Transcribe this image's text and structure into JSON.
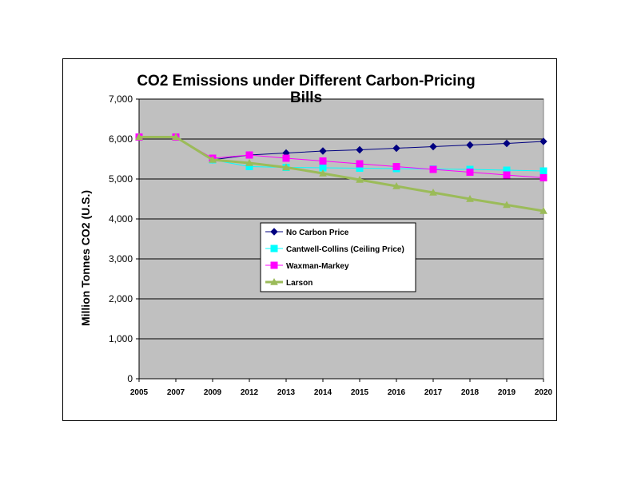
{
  "chart_data": {
    "type": "line",
    "title_lines": [
      "CO2 Emissions under Different Carbon-Pricing",
      "Bills"
    ],
    "ylabel": "Million Tonnes CO2 (U.S.)",
    "xlabel": "",
    "categories": [
      "2005",
      "2007",
      "2009",
      "2012",
      "2013",
      "2014",
      "2015",
      "2016",
      "2017",
      "2018",
      "2019",
      "2020"
    ],
    "y_ticks": [
      "0",
      "1,000",
      "2,000",
      "3,000",
      "4,000",
      "5,000",
      "6,000",
      "7,000"
    ],
    "ylim": [
      0,
      7000
    ],
    "grid": true,
    "plot_background": "#c0c0c0",
    "legend_position": "center",
    "series": [
      {
        "name": "No Carbon Price",
        "color": "#000080",
        "marker": "diamond",
        "values": [
          6050,
          6050,
          5480,
          5600,
          5650,
          5700,
          5730,
          5770,
          5810,
          5850,
          5890,
          5940
        ]
      },
      {
        "name": "Cantwell-Collins (Ceiling Price)",
        "color": "#00ffff",
        "marker": "square",
        "values": [
          6050,
          6050,
          5480,
          5310,
          5290,
          5280,
          5270,
          5260,
          5250,
          5240,
          5220,
          5200
        ]
      },
      {
        "name": "Waxman-Markey",
        "color": "#ff00ff",
        "marker": "square",
        "values": [
          6050,
          6050,
          5520,
          5600,
          5520,
          5450,
          5380,
          5310,
          5240,
          5170,
          5100,
          5030
        ]
      },
      {
        "name": "Larson",
        "color": "#9bbb59",
        "marker": "triangle",
        "values": [
          6050,
          6050,
          5480,
          5400,
          5290,
          5140,
          4980,
          4820,
          4660,
          4500,
          4350,
          4200
        ]
      }
    ]
  }
}
